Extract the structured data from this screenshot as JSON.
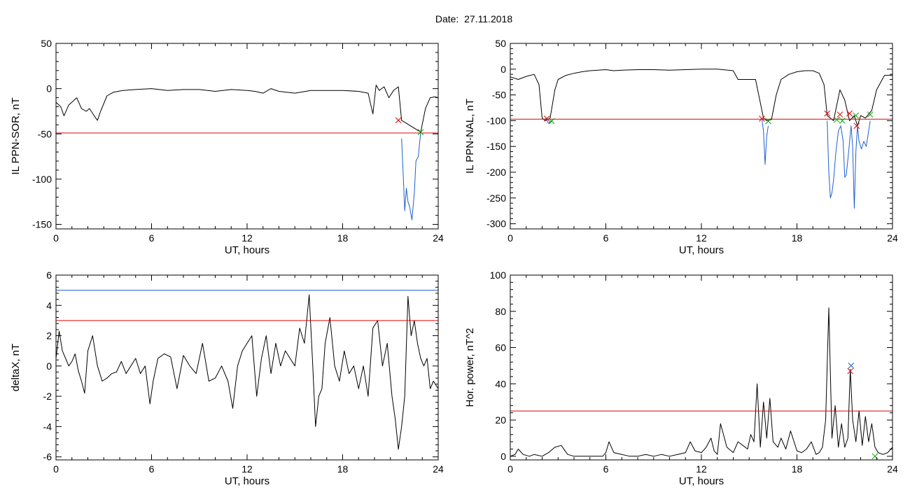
{
  "page": {
    "title": "Date:  27.11.2018"
  },
  "chart_data": [
    {
      "type": "line",
      "xlabel": "UT, hours",
      "ylabel": "IL PPN-SOR, nT",
      "xlim": [
        0,
        24
      ],
      "ylim": [
        -155,
        50
      ],
      "xticks": [
        0,
        6,
        12,
        18,
        24
      ],
      "yticks": [
        50,
        0,
        -50,
        -100,
        -150
      ],
      "xtick_labels": [
        "0",
        "6",
        "12",
        "18",
        "24"
      ],
      "ytick_labels": [
        "50",
        "0",
        "-50",
        "-100",
        "-150"
      ],
      "thresholds": [
        {
          "value": -49,
          "color": "#e00000"
        }
      ],
      "series": [
        {
          "color": "#000000",
          "x": [
            0,
            0.3,
            0.5,
            0.8,
            1.0,
            1.3,
            1.6,
            1.9,
            2.1,
            2.4,
            2.6,
            2.8,
            3.2,
            3.6,
            4.2,
            5,
            6,
            7,
            8,
            9,
            10,
            11,
            12,
            12.5,
            13,
            13.5,
            14,
            15,
            16,
            17,
            18,
            19,
            19.6,
            19.9,
            20.1,
            20.3,
            20.6,
            20.9,
            21.2,
            21.5,
            21.7,
            22.9,
            23.2,
            23.5,
            23.8,
            24
          ],
          "y": [
            -15,
            -20,
            -30,
            -18,
            -15,
            -10,
            -22,
            -25,
            -22,
            -30,
            -35,
            -25,
            -8,
            -4,
            -2,
            -1,
            0,
            -2,
            -1,
            -1,
            -3,
            -1,
            -2,
            -3,
            -5,
            0,
            -3,
            -5,
            -2,
            -2,
            -2,
            -3,
            -5,
            -28,
            4,
            -2,
            2,
            -10,
            -2,
            2,
            -35,
            -48,
            -22,
            -10,
            -9,
            -10
          ]
        },
        {
          "color": "#1f5fcf",
          "x": [
            21.7,
            21.8,
            21.9,
            22.0,
            22.1,
            22.2,
            22.35,
            22.5,
            22.6,
            22.75,
            22.9
          ],
          "y": [
            -55,
            -95,
            -135,
            -110,
            -125,
            -130,
            -145,
            -115,
            -80,
            -75,
            -48
          ]
        }
      ],
      "markers": [
        {
          "x": 21.5,
          "y": -35,
          "color": "#e00000"
        },
        {
          "x": 22.9,
          "y": -48,
          "color": "#00a000"
        }
      ]
    },
    {
      "type": "line",
      "xlabel": "UT, hours",
      "ylabel": "IL PPN-NAL, nT",
      "xlim": [
        0,
        24
      ],
      "ylim": [
        -310,
        50
      ],
      "xticks": [
        0,
        6,
        12,
        18,
        24
      ],
      "yticks": [
        50,
        0,
        -50,
        -100,
        -150,
        -200,
        -250,
        -300
      ],
      "xtick_labels": [
        "0",
        "6",
        "12",
        "18",
        "24"
      ],
      "ytick_labels": [
        "50",
        "0",
        "-50",
        "-100",
        "-150",
        "-200",
        "-250",
        "-300"
      ],
      "thresholds": [
        {
          "value": -97,
          "color": "#e00000"
        }
      ],
      "series": [
        {
          "color": "#000000",
          "x": [
            0,
            0.5,
            1,
            1.5,
            1.8,
            2.0,
            2.2,
            2.5,
            2.8,
            3.0,
            3.5,
            4.0,
            4.5,
            5.0,
            5.5,
            6,
            6.5,
            7,
            8,
            9,
            10,
            11,
            12,
            13,
            14,
            14.3,
            15,
            15.4,
            15.6,
            15.9,
            16.1,
            16.4,
            16.7,
            17,
            17.5,
            18,
            18.5,
            19,
            19.4,
            19.7,
            19.9,
            20.3,
            20.7,
            21.0,
            21.3,
            21.6,
            21.8,
            22.0,
            22.3,
            22.7,
            23,
            23.5,
            24
          ],
          "y": [
            -15,
            -20,
            -14,
            -10,
            -30,
            -95,
            -100,
            -95,
            -40,
            -20,
            -12,
            -8,
            -5,
            -3,
            -2,
            -1,
            -3,
            -2,
            -1,
            -1,
            -2,
            -1,
            0,
            0,
            -3,
            -20,
            -20,
            -20,
            -50,
            -95,
            -100,
            -98,
            -50,
            -20,
            -10,
            -5,
            -3,
            -3,
            -8,
            -30,
            -90,
            -100,
            -40,
            -60,
            -100,
            -90,
            -110,
            -90,
            -95,
            -80,
            -40,
            -12,
            -12
          ]
        },
        {
          "color": "#1f5fcf",
          "x": [
            2.2,
            2.4,
            2.6
          ],
          "y": [
            -95,
            -105,
            -100
          ]
        },
        {
          "color": "#1f5fcf",
          "x": [
            15.8,
            15.9,
            16.0,
            16.1,
            16.2
          ],
          "y": [
            -98,
            -120,
            -185,
            -130,
            -110
          ]
        },
        {
          "color": "#1f5fcf",
          "x": [
            19.9,
            20.0,
            20.1,
            20.2,
            20.3,
            20.45,
            20.6,
            20.75,
            20.9,
            21.0,
            21.1,
            21.25,
            21.4,
            21.5,
            21.6,
            21.7,
            21.8,
            21.9,
            22.05,
            22.2,
            22.35,
            22.5,
            22.6
          ],
          "y": [
            -100,
            -200,
            -250,
            -240,
            -215,
            -160,
            -120,
            -110,
            -140,
            -210,
            -205,
            -160,
            -110,
            -150,
            -270,
            -160,
            -110,
            -140,
            -155,
            -140,
            -150,
            -120,
            -100
          ]
        }
      ],
      "markers": [
        {
          "x": 2.3,
          "y": -96,
          "color": "#e00000"
        },
        {
          "x": 2.6,
          "y": -101,
          "color": "#00a000"
        },
        {
          "x": 15.8,
          "y": -96,
          "color": "#e00000"
        },
        {
          "x": 16.2,
          "y": -101,
          "color": "#00a000"
        },
        {
          "x": 19.9,
          "y": -86,
          "color": "#e00000"
        },
        {
          "x": 20.5,
          "y": -98,
          "color": "#00a000"
        },
        {
          "x": 20.7,
          "y": -88,
          "color": "#e00000"
        },
        {
          "x": 20.85,
          "y": -100,
          "color": "#00a000"
        },
        {
          "x": 21.3,
          "y": -86,
          "color": "#e00000"
        },
        {
          "x": 21.7,
          "y": -90,
          "color": "#00a000"
        },
        {
          "x": 21.75,
          "y": -110,
          "color": "#e00000"
        },
        {
          "x": 22.6,
          "y": -88,
          "color": "#00a000"
        }
      ]
    },
    {
      "type": "line",
      "xlabel": "UT, hours",
      "ylabel": "deltaX, nT",
      "xlim": [
        0,
        24
      ],
      "ylim": [
        -6.2,
        6
      ],
      "xticks": [
        0,
        6,
        12,
        18,
        24
      ],
      "yticks": [
        6,
        4,
        2,
        0,
        -2,
        -4,
        -6
      ],
      "xtick_labels": [
        "0",
        "6",
        "12",
        "18",
        "24"
      ],
      "ytick_labels": [
        "6",
        "4",
        "2",
        "0",
        "-2",
        "-4",
        "-6"
      ],
      "thresholds": [
        {
          "value": 5,
          "color": "#1f5fcf"
        },
        {
          "value": 3,
          "color": "#e00000"
        }
      ],
      "series": [
        {
          "color": "#000000",
          "x": [
            0,
            0.2,
            0.4,
            0.6,
            0.8,
            1.0,
            1.2,
            1.4,
            1.6,
            1.8,
            2.0,
            2.3,
            2.6,
            2.9,
            3.2,
            3.5,
            3.8,
            4.1,
            4.4,
            4.7,
            5.0,
            5.3,
            5.6,
            5.9,
            6.1,
            6.4,
            6.8,
            7.2,
            7.6,
            8.0,
            8.4,
            8.8,
            9.2,
            9.6,
            10.0,
            10.4,
            10.8,
            11.1,
            11.4,
            11.7,
            12.0,
            12.3,
            12.6,
            12.9,
            13.2,
            13.5,
            13.8,
            14.1,
            14.4,
            14.7,
            15.0,
            15.3,
            15.6,
            15.9,
            16.1,
            16.3,
            16.5,
            16.7,
            16.9,
            17.2,
            17.5,
            17.8,
            18.1,
            18.4,
            18.7,
            19.0,
            19.3,
            19.6,
            19.9,
            20.2,
            20.5,
            20.8,
            21.1,
            21.3,
            21.5,
            21.7,
            21.9,
            22.1,
            22.3,
            22.5,
            22.7,
            22.9,
            23.1,
            23.3,
            23.5,
            23.7,
            24
          ],
          "y": [
            0.5,
            2.3,
            1.0,
            0.5,
            0.0,
            0.3,
            0.8,
            -0.3,
            -1.0,
            -1.8,
            1.0,
            2.0,
            0.0,
            -1.0,
            -0.8,
            -0.5,
            -0.4,
            0.3,
            -0.5,
            0.0,
            0.5,
            -0.5,
            0.0,
            -2.5,
            -1.0,
            0.5,
            0.8,
            0.6,
            -1.5,
            0.7,
            0.0,
            -0.5,
            1.5,
            -1.0,
            -0.8,
            0.0,
            -1.0,
            -2.8,
            0.0,
            1.0,
            1.5,
            2.0,
            -2.0,
            0.5,
            2.0,
            -0.5,
            1.5,
            0.0,
            1.0,
            0.5,
            0.0,
            2.5,
            1.5,
            4.7,
            0.5,
            -4.0,
            -2.0,
            -1.5,
            1.5,
            3.2,
            0.0,
            -1.0,
            1.0,
            -0.5,
            0.0,
            -1.5,
            0.0,
            -2.0,
            2.5,
            3.0,
            0.0,
            1.5,
            -2.0,
            -3.5,
            -5.5,
            -4.0,
            -2.0,
            4.6,
            2.0,
            3.0,
            1.5,
            0.5,
            0.0,
            0.5,
            -1.5,
            -1.0,
            -1.5
          ]
        }
      ],
      "markers": []
    },
    {
      "type": "line",
      "xlabel": "UT, hours",
      "ylabel": "Hor. power, nT^2",
      "xlim": [
        0,
        24
      ],
      "ylim": [
        -2,
        100
      ],
      "xticks": [
        0,
        6,
        12,
        18,
        24
      ],
      "yticks": [
        100,
        80,
        60,
        40,
        20,
        0
      ],
      "xtick_labels": [
        "0",
        "6",
        "12",
        "18",
        "24"
      ],
      "ytick_labels": [
        "100",
        "80",
        "60",
        "40",
        "20",
        "0"
      ],
      "thresholds": [
        {
          "value": 25,
          "color": "#e00000"
        }
      ],
      "series": [
        {
          "color": "#000000",
          "x": [
            0,
            0.3,
            0.5,
            0.8,
            1.2,
            1.5,
            2.0,
            2.4,
            2.8,
            3.2,
            3.6,
            4.0,
            4.5,
            5.0,
            5.3,
            5.8,
            6.0,
            6.2,
            6.5,
            7.0,
            7.5,
            8.0,
            8.5,
            9.0,
            9.5,
            10.0,
            10.5,
            11.0,
            11.3,
            11.6,
            12.0,
            12.3,
            12.6,
            12.8,
            13.0,
            13.2,
            13.6,
            14.0,
            14.3,
            14.6,
            14.9,
            15.1,
            15.3,
            15.5,
            15.7,
            15.9,
            16.1,
            16.3,
            16.5,
            16.8,
            17.0,
            17.3,
            17.6,
            18.0,
            18.3,
            18.6,
            18.9,
            19.2,
            19.4,
            19.6,
            19.8,
            20.0,
            20.2,
            20.4,
            20.6,
            20.8,
            21.0,
            21.2,
            21.35,
            21.5,
            21.7,
            21.9,
            22.1,
            22.3,
            22.5,
            22.7,
            22.9,
            23.1,
            23.4,
            23.7,
            24
          ],
          "y": [
            0,
            1,
            4,
            1,
            0,
            1,
            0,
            2,
            5,
            6,
            1,
            0,
            0,
            0,
            0,
            0,
            2,
            8,
            2,
            1,
            0,
            0,
            1,
            0,
            1,
            0,
            1,
            2,
            8,
            3,
            2,
            5,
            10,
            3,
            1,
            18,
            5,
            2,
            8,
            6,
            4,
            12,
            8,
            40,
            5,
            30,
            10,
            32,
            8,
            5,
            10,
            4,
            14,
            3,
            2,
            4,
            8,
            1,
            2,
            5,
            20,
            82,
            10,
            28,
            5,
            18,
            5,
            10,
            48,
            20,
            8,
            25,
            6,
            22,
            8,
            18,
            5,
            2,
            1,
            2,
            5
          ]
        }
      ],
      "markers": [
        {
          "x": 21.35,
          "y": 47,
          "color": "#e00000"
        },
        {
          "x": 21.4,
          "y": 50,
          "color": "#1f5fcf"
        },
        {
          "x": 22.9,
          "y": 0,
          "color": "#00a000"
        }
      ]
    }
  ]
}
